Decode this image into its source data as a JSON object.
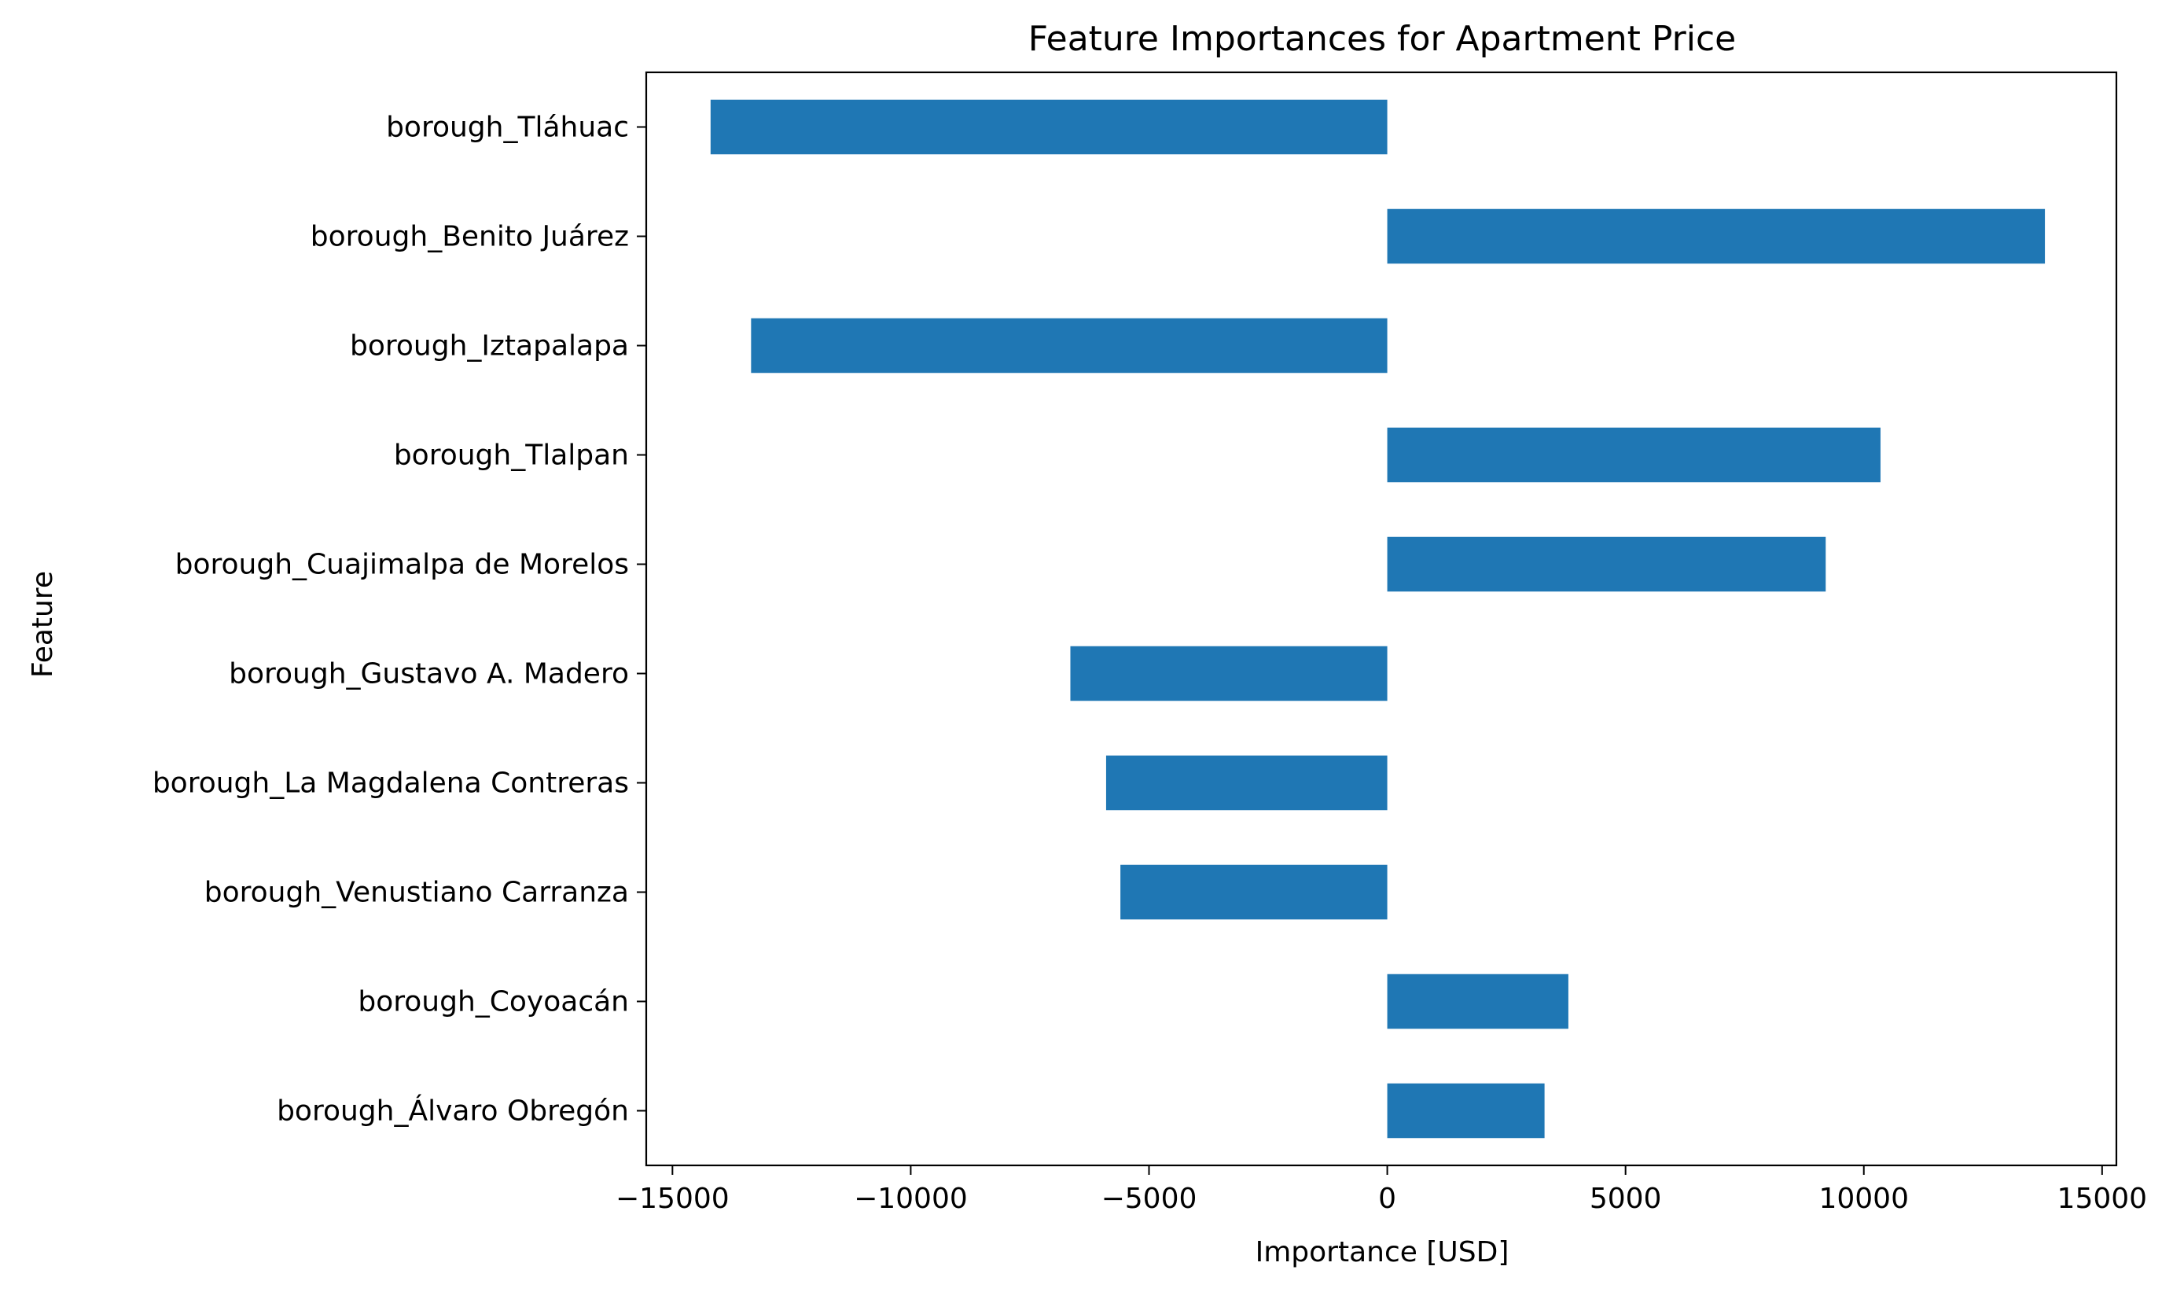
{
  "chart_data": {
    "type": "bar",
    "orientation": "horizontal",
    "title": "Feature Importances for Apartment Price",
    "xlabel": "Importance [USD]",
    "ylabel": "Feature",
    "categories": [
      "borough_Álvaro Obregón",
      "borough_Coyoacán",
      "borough_Venustiano Carranza",
      "borough_La Magdalena Contreras",
      "borough_Gustavo A. Madero",
      "borough_Cuajimalpa de Morelos",
      "borough_Tlalpan",
      "borough_Iztapalapa",
      "borough_Benito Juárez",
      "borough_Tláhuac"
    ],
    "values": [
      3300,
      3800,
      -5600,
      -5900,
      -6650,
      9200,
      10350,
      -13350,
      13800,
      -14200
    ],
    "xlim": [
      -15550,
      15300
    ],
    "xticks": [
      -15000,
      -10000,
      -5000,
      0,
      5000,
      10000,
      15000
    ],
    "xtick_labels": [
      "−15000",
      "−10000",
      "−5000",
      "0",
      "5000",
      "10000",
      "15000"
    ],
    "grid": false,
    "legend": "none",
    "bar_color": "#1f77b4"
  }
}
